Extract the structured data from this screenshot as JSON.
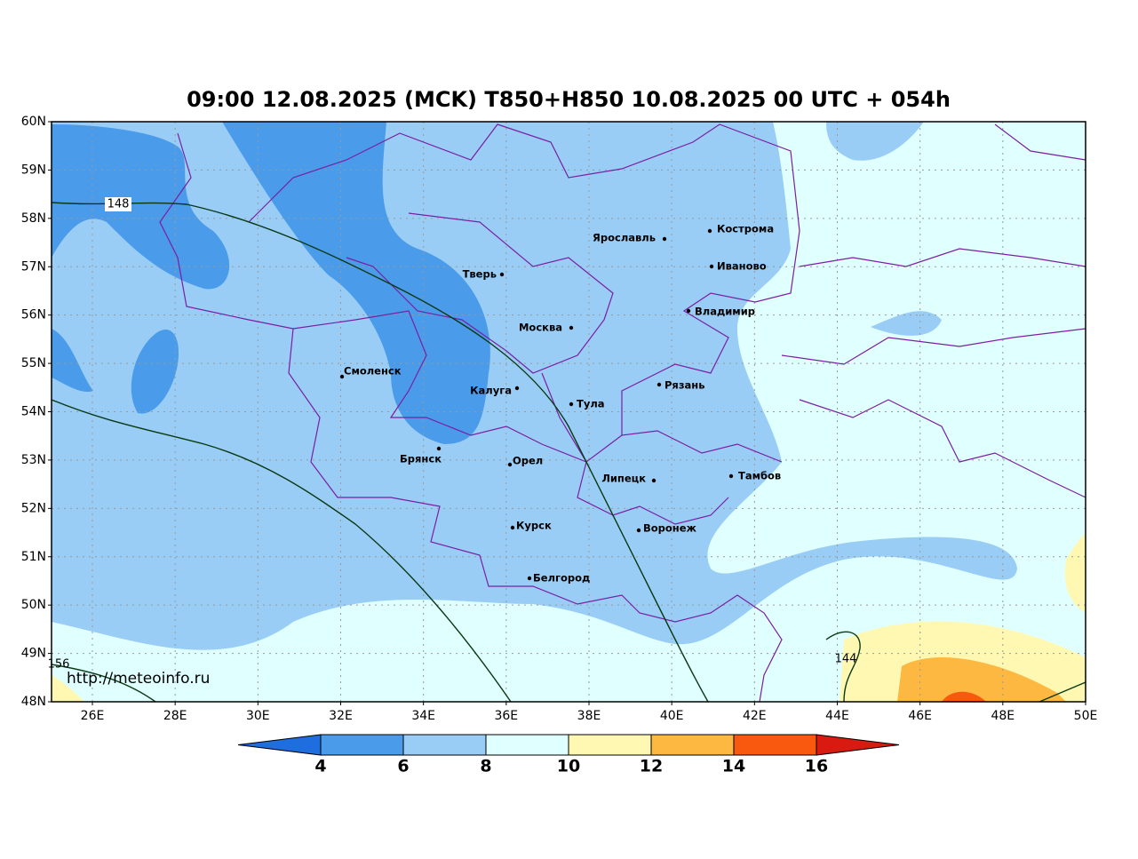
{
  "title": "09:00 12.08.2025 (MCK) T850+H850 10.08.2025 00 UTC + 054h",
  "map": {
    "lat_labels": [
      "60N",
      "59N",
      "58N",
      "57N",
      "56N",
      "55N",
      "54N",
      "53N",
      "52N",
      "51N",
      "50N",
      "49N",
      "48N"
    ],
    "lon_labels": [
      "26E",
      "28E",
      "30E",
      "32E",
      "34E",
      "36E",
      "38E",
      "40E",
      "42E",
      "44E",
      "46E",
      "48E",
      "50E"
    ],
    "cities": [
      "Ярославль",
      "Кострома",
      "Иваново",
      "Тверь",
      "Владимир",
      "Москва",
      "Смоленск",
      "Калуга",
      "Рязань",
      "Тула",
      "Брянск",
      "Орел",
      "Липецк",
      "Тамбов",
      "Курск",
      "Воронеж",
      "Белгород"
    ],
    "contour_labels": [
      "148",
      "144",
      "156"
    ],
    "watermark": "http://meteoinfo.ru"
  },
  "legend": {
    "levels": [
      4,
      6,
      8,
      10,
      12,
      14,
      16
    ],
    "colors": [
      "#1e6ee0",
      "#4a9be9",
      "#99cdf6",
      "#e0ffff",
      "#fff8b2",
      "#fdb842",
      "#f9580f",
      "#d91a10"
    ]
  }
}
